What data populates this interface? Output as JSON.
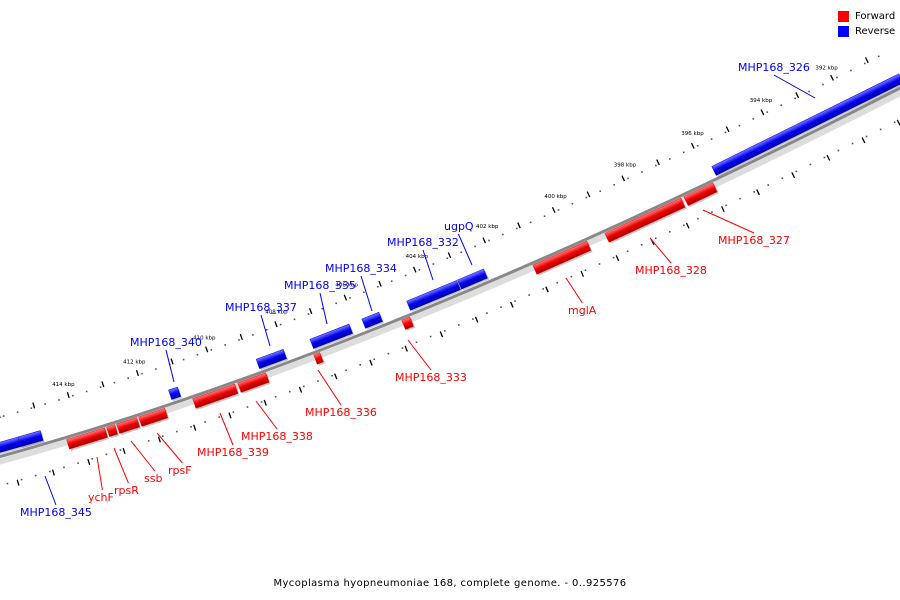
{
  "colors": {
    "forward": "#ff0000",
    "reverse": "#0000ff",
    "backbone": "#888888"
  },
  "legend": [
    {
      "label": "Forward",
      "color": "#ff0000",
      "strand": "forward"
    },
    {
      "label": "Reverse",
      "color": "#0000ff",
      "strand": "reverse"
    }
  ],
  "caption": "Mycoplasma hyopneumoniae 168, complete genome. - 0..925576",
  "ticks": [
    "392 kbp",
    "394 kbp",
    "396 kbp",
    "398 kbp",
    "400 kbp",
    "402 kbp",
    "404 kbp",
    "406 kbp",
    "408 kbp",
    "410 kbp",
    "412 kbp",
    "414 kbp"
  ],
  "genes": [
    {
      "name": "MHP168_326",
      "strand": "reverse"
    },
    {
      "name": "MHP168_327",
      "strand": "forward"
    },
    {
      "name": "MHP168_328",
      "strand": "forward"
    },
    {
      "name": "mglA",
      "strand": "forward"
    },
    {
      "name": "ugpQ",
      "strand": "reverse"
    },
    {
      "name": "MHP168_332",
      "strand": "reverse"
    },
    {
      "name": "MHP168_333",
      "strand": "forward"
    },
    {
      "name": "MHP168_334",
      "strand": "reverse"
    },
    {
      "name": "MHP168_335",
      "strand": "reverse"
    },
    {
      "name": "MHP168_336",
      "strand": "forward"
    },
    {
      "name": "MHP168_337",
      "strand": "reverse"
    },
    {
      "name": "MHP168_338",
      "strand": "forward"
    },
    {
      "name": "MHP168_339",
      "strand": "forward"
    },
    {
      "name": "MHP168_340",
      "strand": "reverse"
    },
    {
      "name": "rpsF",
      "strand": "forward"
    },
    {
      "name": "ssb",
      "strand": "forward"
    },
    {
      "name": "rpsR",
      "strand": "forward"
    },
    {
      "name": "ychF",
      "strand": "forward"
    },
    {
      "name": "MHP168_345",
      "strand": "reverse"
    }
  ]
}
